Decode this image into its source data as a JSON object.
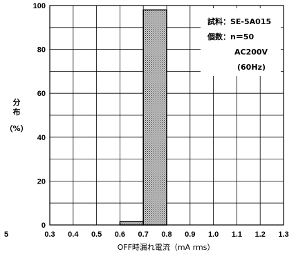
{
  "chart_data": {
    "type": "bar",
    "title": "",
    "xlabel": "OFF時漏れ電流（mA rms）",
    "ylabel": "分布（%）",
    "ylabel_lines": [
      "分",
      "布",
      "（%）"
    ],
    "x_ticks": [
      "0.3",
      "0.4",
      "0.5",
      "0.6",
      "0.7",
      "0.8",
      "0.9",
      "1.0",
      "1.1",
      "1.2",
      "1.3"
    ],
    "y_ticks": [
      "0",
      "20",
      "40",
      "60",
      "80",
      "100"
    ],
    "xlim": [
      0.3,
      1.3
    ],
    "ylim": [
      0,
      100
    ],
    "bins": [
      {
        "start": 0.6,
        "end": 0.7,
        "value": 1.5
      },
      {
        "start": 0.7,
        "end": 0.8,
        "value": 98
      }
    ],
    "grid": true,
    "bar_fill": "#a9a9a9",
    "annotations": [
      "試料：SE-5A015",
      "個数：n＝50",
      "AC200V",
      "(60Hz)"
    ],
    "left_cut_label": "5"
  }
}
